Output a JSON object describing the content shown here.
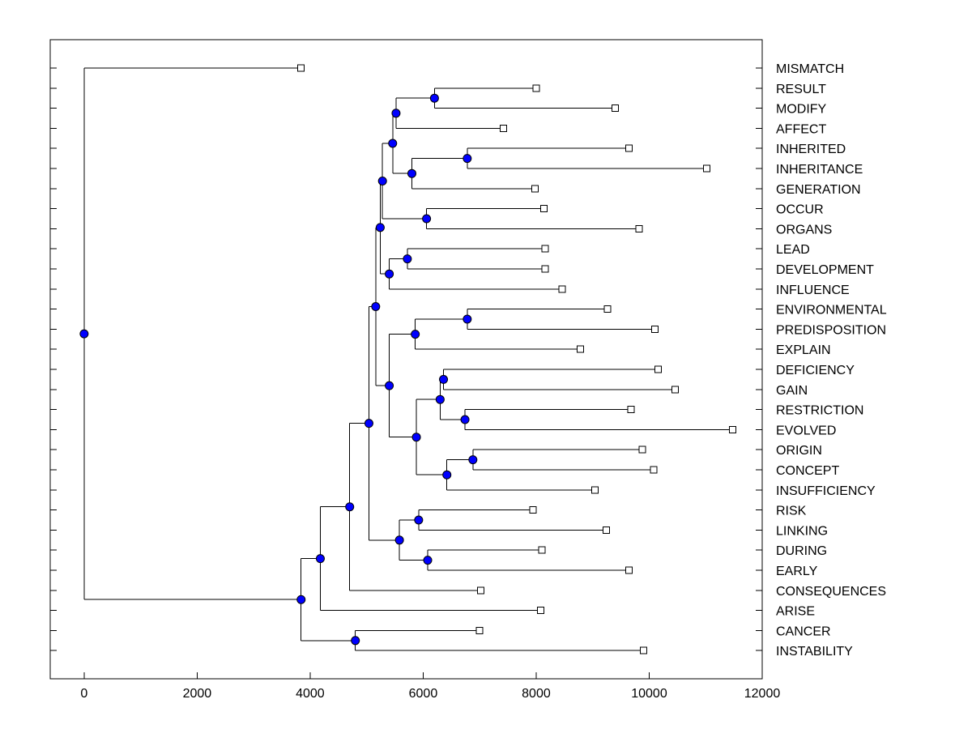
{
  "chart_data": {
    "type": "dendrogram",
    "orientation": "horizontal",
    "title": "",
    "xlabel": "",
    "ylabel": "",
    "xlim": [
      -600,
      12000
    ],
    "xticks": [
      0,
      2000,
      4000,
      6000,
      8000,
      10000,
      12000
    ],
    "xtick_labels": [
      "0",
      "2000",
      "4000",
      "6000",
      "8000",
      "10000",
      "12000"
    ],
    "grid": false,
    "leaves": [
      {
        "label": "MISMATCH",
        "x": 3840
      },
      {
        "label": "RESULT",
        "x": 8000
      },
      {
        "label": "MODIFY",
        "x": 9400
      },
      {
        "label": "AFFECT",
        "x": 7420
      },
      {
        "label": "INHERITED",
        "x": 9640
      },
      {
        "label": "INHERITANCE",
        "x": 11020
      },
      {
        "label": "GENERATION",
        "x": 7980
      },
      {
        "label": "OCCUR",
        "x": 8140
      },
      {
        "label": "ORGANS",
        "x": 9820
      },
      {
        "label": "LEAD",
        "x": 8160
      },
      {
        "label": "DEVELOPMENT",
        "x": 8160
      },
      {
        "label": "INFLUENCE",
        "x": 8460
      },
      {
        "label": "ENVIRONMENTAL",
        "x": 9260
      },
      {
        "label": "PREDISPOSITION",
        "x": 10100
      },
      {
        "label": "EXPLAIN",
        "x": 8780
      },
      {
        "label": "DEFICIENCY",
        "x": 10160
      },
      {
        "label": "GAIN",
        "x": 10460
      },
      {
        "label": "RESTRICTION",
        "x": 9680
      },
      {
        "label": "EVOLVED",
        "x": 11480
      },
      {
        "label": "ORIGIN",
        "x": 9880
      },
      {
        "label": "CONCEPT",
        "x": 10080
      },
      {
        "label": "INSUFFICIENCY",
        "x": 9040
      },
      {
        "label": "RISK",
        "x": 7940
      },
      {
        "label": "LINKING",
        "x": 9240
      },
      {
        "label": "DURING",
        "x": 8100
      },
      {
        "label": "EARLY",
        "x": 9640
      },
      {
        "label": "CONSEQUENCES",
        "x": 7020
      },
      {
        "label": "ARISE",
        "x": 8080
      },
      {
        "label": "CANCER",
        "x": 7000
      },
      {
        "label": "INSTABILITY",
        "x": 9900
      }
    ],
    "merges": [
      {
        "id": "N1",
        "x": 6200,
        "children": [
          "L1",
          "L2"
        ]
      },
      {
        "id": "N2",
        "x": 5520,
        "children": [
          "N1",
          "L3"
        ]
      },
      {
        "id": "N3",
        "x": 6780,
        "children": [
          "L4",
          "L5"
        ]
      },
      {
        "id": "N4",
        "x": 5800,
        "children": [
          "N3",
          "L6"
        ]
      },
      {
        "id": "N5",
        "x": 5460,
        "children": [
          "N2",
          "N4"
        ]
      },
      {
        "id": "N6",
        "x": 6060,
        "children": [
          "L7",
          "L8"
        ]
      },
      {
        "id": "N7",
        "x": 5280,
        "children": [
          "N5",
          "N6"
        ]
      },
      {
        "id": "N8",
        "x": 5720,
        "children": [
          "L9",
          "L10"
        ]
      },
      {
        "id": "N9",
        "x": 5400,
        "children": [
          "N8",
          "L11"
        ]
      },
      {
        "id": "N10",
        "x": 5240,
        "children": [
          "N7",
          "N9"
        ]
      },
      {
        "id": "N11",
        "x": 6780,
        "children": [
          "L12",
          "L13"
        ]
      },
      {
        "id": "N12",
        "x": 5860,
        "children": [
          "N11",
          "L14"
        ]
      },
      {
        "id": "N13",
        "x": 6360,
        "children": [
          "L15",
          "L16"
        ]
      },
      {
        "id": "N14",
        "x": 6740,
        "children": [
          "L17",
          "L18"
        ]
      },
      {
        "id": "N15",
        "x": 6300,
        "children": [
          "N13",
          "N14"
        ]
      },
      {
        "id": "N16",
        "x": 6880,
        "children": [
          "L19",
          "L20"
        ]
      },
      {
        "id": "N17",
        "x": 6420,
        "children": [
          "N16",
          "L21"
        ]
      },
      {
        "id": "N18",
        "x": 5880,
        "children": [
          "N15",
          "N17"
        ]
      },
      {
        "id": "N19",
        "x": 5400,
        "children": [
          "N12",
          "N18"
        ]
      },
      {
        "id": "N20",
        "x": 5160,
        "children": [
          "N10",
          "N19"
        ]
      },
      {
        "id": "N21",
        "x": 5920,
        "children": [
          "L22",
          "L23"
        ]
      },
      {
        "id": "N22",
        "x": 6080,
        "children": [
          "L24",
          "L25"
        ]
      },
      {
        "id": "N23",
        "x": 5580,
        "children": [
          "N21",
          "N22"
        ]
      },
      {
        "id": "N24",
        "x": 5040,
        "children": [
          "N20",
          "N23"
        ]
      },
      {
        "id": "N25",
        "x": 4700,
        "children": [
          "N24",
          "L26"
        ]
      },
      {
        "id": "N26",
        "x": 4180,
        "children": [
          "N25",
          "L27"
        ]
      },
      {
        "id": "N27",
        "x": 4800,
        "children": [
          "L28",
          "L29"
        ]
      },
      {
        "id": "N28",
        "x": 3840,
        "children": [
          "N26",
          "N27"
        ]
      },
      {
        "id": "N29",
        "x": 0,
        "children": [
          "L0",
          "N28"
        ]
      }
    ]
  }
}
